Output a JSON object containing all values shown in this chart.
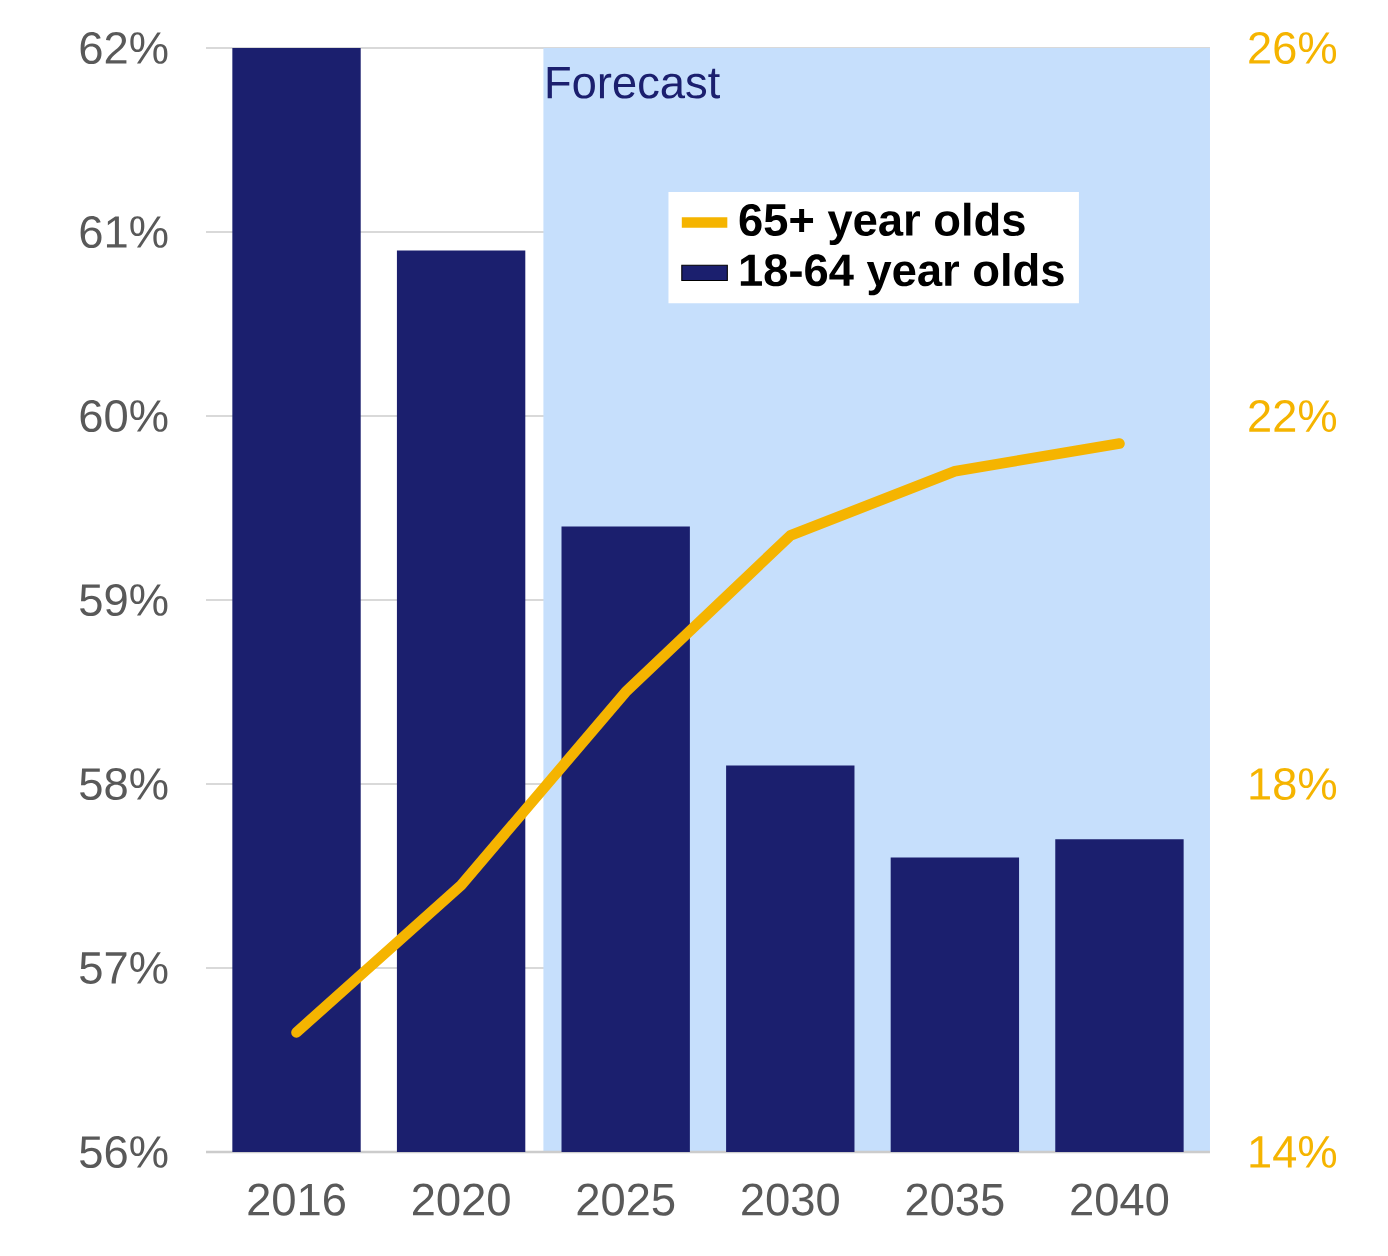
{
  "chart_data": {
    "type": "bar",
    "categories": [
      "2016",
      "2020",
      "2025",
      "2030",
      "2035",
      "2040"
    ],
    "series": [
      {
        "name": "65+ year olds",
        "type": "line",
        "axis": "y2",
        "color": "#f5b400",
        "values": [
          15.3,
          16.9,
          19.0,
          20.7,
          21.4,
          21.7
        ]
      },
      {
        "name": "18-64 year olds",
        "color": "#1b1f6e",
        "values": [
          62.0,
          60.9,
          59.4,
          58.1,
          57.6,
          57.7
        ]
      }
    ],
    "ylim": [
      56,
      62
    ],
    "yticks": [
      {
        "value": 56,
        "label": "56%"
      },
      {
        "value": 57,
        "label": "57%"
      },
      {
        "value": 58,
        "label": "58%"
      },
      {
        "value": 59,
        "label": "59%"
      },
      {
        "value": 60,
        "label": "60%"
      },
      {
        "value": 61,
        "label": "61%"
      },
      {
        "value": 62,
        "label": "62%"
      }
    ],
    "y2lim": [
      14,
      26
    ],
    "y2ticks": [
      {
        "value": 14,
        "label": "14%"
      },
      {
        "value": 18,
        "label": "18%"
      },
      {
        "value": 22,
        "label": "22%"
      },
      {
        "value": 26,
        "label": "26%"
      }
    ],
    "bands": [
      {
        "axis": "x",
        "from": "2025",
        "to": "2040",
        "label": "Forecast",
        "color": "#c6dffc"
      }
    ],
    "grid": "y",
    "legend": "top right",
    "marker": "none",
    "line_style": "solid"
  }
}
